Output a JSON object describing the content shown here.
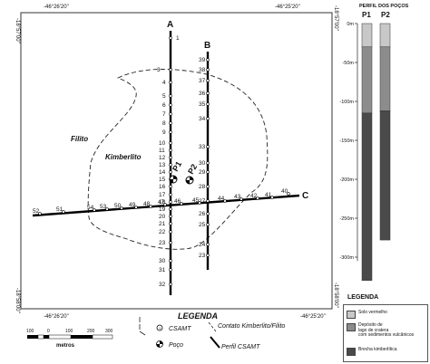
{
  "coords": {
    "top_lon_left": "-46°26'20\"",
    "top_lon_right": "-46°25'20\"",
    "bottom_lon_left": "-46°26'20\"",
    "bottom_lon_right": "-46°25'20\"",
    "left_lat_top": "-18°57'00\"",
    "left_lat_bottom": "-18°58'00\"",
    "right_lat_top": "-18°57'00\"",
    "right_lat_bottom": "-18°58'00\""
  },
  "map": {
    "label_filito": "Filito",
    "label_kimberlito": "Kimberlito",
    "profile_A": "A",
    "profile_B": "B",
    "profile_C": "C",
    "stations_A": [
      "1",
      "3",
      "4",
      "5",
      "6",
      "7",
      "8",
      "9",
      "10",
      "11",
      "12",
      "13",
      "14",
      "15",
      "16",
      "17",
      "18",
      "19",
      "20",
      "21",
      "22",
      "23",
      "30",
      "31",
      "32"
    ],
    "stations_B": [
      "39",
      "38",
      "37",
      "36",
      "35",
      "34",
      "33",
      "30",
      "29",
      "28",
      "27",
      "26",
      "25",
      "24",
      "23"
    ],
    "stations_C_left": [
      "52",
      "51",
      "54",
      "53",
      "50",
      "49",
      "48",
      "47",
      "46"
    ],
    "stations_C_right": [
      "45",
      "44",
      "43",
      "42",
      "41",
      "40"
    ],
    "well_P1": "P1",
    "well_P2": "P2"
  },
  "legend": {
    "title": "LEGENDA",
    "csamt": "CSAMT",
    "poco": "Poço",
    "contato": "Contato Kimberlito/Filito",
    "perfil": "Perfil CSAMT",
    "scale_ticks": [
      "100",
      "0",
      "100",
      "200",
      "300"
    ],
    "scale_unit": "metros"
  },
  "well_profile": {
    "title": "PERFIL DOS POÇOS",
    "col_P1": "P1",
    "col_P2": "P2",
    "depth_labels": [
      "0m",
      "-50m",
      "-100m",
      "-150m",
      "-200m",
      "-250m",
      "-300m"
    ],
    "colors": {
      "solo": "#c8c8c8",
      "deposito": "#8c8c8c",
      "brecha": "#4a4a4a"
    },
    "P1_layers": [
      {
        "unit": "solo",
        "from": 0,
        "to": 30
      },
      {
        "unit": "deposito",
        "from": 30,
        "to": 115
      },
      {
        "unit": "brecha",
        "from": 115,
        "to": 330
      }
    ],
    "P2_layers": [
      {
        "unit": "solo",
        "from": 0,
        "to": 30
      },
      {
        "unit": "deposito",
        "from": 30,
        "to": 112
      },
      {
        "unit": "brecha",
        "from": 112,
        "to": 278
      }
    ]
  },
  "unit_legend": {
    "title": "LEGENDA",
    "solo": "Solo vermelho",
    "deposito_line1": "Depósito de",
    "deposito_line2": "lago de cratera",
    "deposito_line3": "com sedimentos vulcânicos",
    "brecha": "Brecha kimberlítica"
  }
}
